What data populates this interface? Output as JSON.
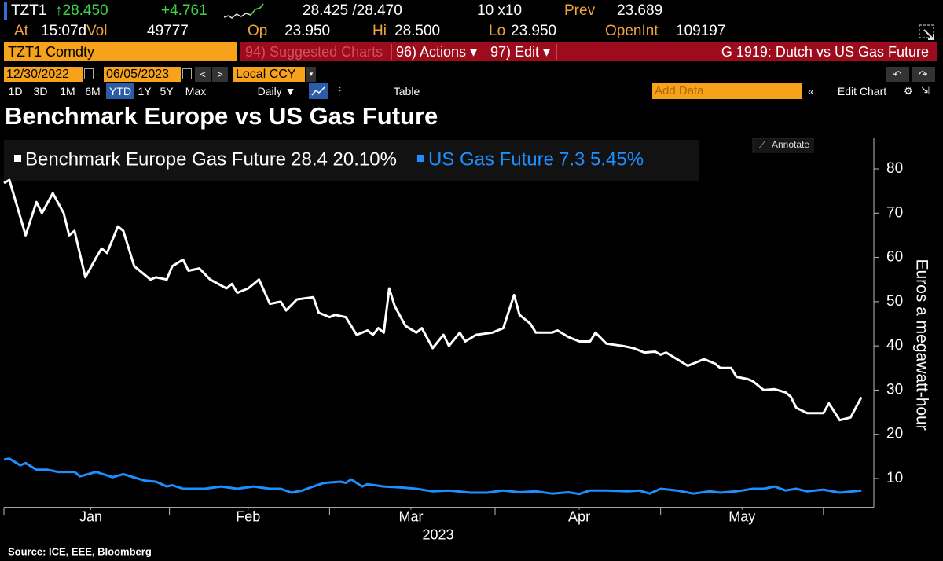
{
  "header": {
    "ticker": "TZT1",
    "last": "↑28.450",
    "change": "+4.761",
    "bid_ask": "28.425 /28.470",
    "size": "10 x10",
    "prev_label": "Prev",
    "prev": "23.689",
    "at_label": "At",
    "time": "15:07d",
    "vol_label": "Vol",
    "vol": "49777",
    "op_label": "Op",
    "op": "23.950",
    "hi_label": "Hi",
    "hi": "28.500",
    "lo_label": "Lo",
    "lo": "23.950",
    "oi_label": "OpenInt",
    "oi": "109197"
  },
  "toolbar": {
    "security": "TZT1 Comdty",
    "suggested": "94) Suggested Charts",
    "actions": "96) Actions ▾",
    "edit": "97) Edit ▾",
    "chart_name": "G 1919: Dutch vs US Gas Future",
    "start_date": "12/30/2022",
    "end_date": "06/05/2023",
    "currency": "Local CCY",
    "periods": [
      "1D",
      "3D",
      "1M",
      "6M",
      "YTD",
      "1Y",
      "5Y",
      "Max"
    ],
    "frequency": "Daily ▼",
    "table": "Table",
    "add_data": "Add Data",
    "edit_chart": "Edit Chart"
  },
  "chart_data": {
    "type": "line",
    "title": "Benchmark Europe vs US Gas Future",
    "annotate": "Annotate",
    "ylabel": "Euros a megawatt-hour",
    "xlabel": "2023",
    "source": "Source: ICE, EEE, Bloomberg",
    "xlim": [
      0,
      160
    ],
    "xticks": [
      {
        "value": 16,
        "label": "Jan"
      },
      {
        "value": 45,
        "label": "Feb"
      },
      {
        "value": 75,
        "label": "Mar"
      },
      {
        "value": 106,
        "label": "Apr"
      },
      {
        "value": 136,
        "label": "May"
      }
    ],
    "ylim": [
      3.5,
      87
    ],
    "yticks": [
      10,
      20,
      30,
      40,
      50,
      60,
      70,
      80
    ],
    "grid": false,
    "y_axis_side": "right",
    "series": [
      {
        "name": "Benchmark Europe Gas Future",
        "legend_stats": "28.4 20.10%",
        "color": "#ffffff",
        "x": [
          0,
          1,
          4,
          6,
          7,
          9,
          11,
          12,
          13,
          15,
          17,
          18,
          19,
          21,
          22,
          24,
          27,
          28,
          30,
          31,
          33,
          34,
          36,
          38,
          41,
          42,
          43,
          45,
          47,
          49,
          51,
          52,
          54,
          57,
          58,
          60,
          61,
          63,
          65,
          67,
          68,
          69,
          70,
          71,
          72,
          74,
          76,
          77,
          79,
          81,
          82,
          84,
          85,
          87,
          90,
          92,
          94,
          95,
          97,
          98,
          101,
          102,
          104,
          106,
          108,
          109,
          111,
          114,
          116,
          118,
          120,
          121,
          122,
          124,
          126,
          128,
          129,
          131,
          132,
          134,
          135,
          137,
          138,
          140,
          142,
          144,
          145,
          146,
          148,
          151,
          152,
          154,
          156,
          158
        ],
        "values": [
          76.8,
          77.5,
          65,
          72.5,
          70,
          74.5,
          70,
          65,
          66,
          55.5,
          60,
          62,
          61,
          67,
          66,
          58,
          55,
          55.5,
          55,
          58,
          59.5,
          57,
          57.5,
          55,
          53,
          54,
          52,
          53,
          55,
          49.5,
          50,
          48,
          50.5,
          51,
          47.5,
          46.5,
          47,
          46.5,
          42.5,
          43.5,
          42.5,
          44,
          43,
          53,
          49,
          44.5,
          43,
          44,
          39.5,
          42.5,
          40,
          43,
          41,
          42.5,
          43,
          44,
          51.5,
          47,
          45,
          43,
          43,
          43.5,
          42,
          41,
          41,
          43,
          40.5,
          40,
          39.5,
          38.5,
          38.7,
          38,
          38.5,
          37,
          35.5,
          36.5,
          37,
          36,
          35,
          35,
          33,
          32.5,
          32,
          30,
          30.2,
          29.5,
          28.5,
          26,
          24.8,
          24.8,
          27,
          23.2,
          23.8,
          28.4
        ]
      },
      {
        "name": "US Gas Future",
        "legend_stats": "7.3 5.45%",
        "color": "#1e8fff",
        "x": [
          0,
          1,
          3,
          4,
          6,
          8,
          10,
          13,
          14,
          17,
          20,
          22,
          26,
          28,
          30,
          31,
          33,
          37,
          40,
          43,
          46,
          49,
          51,
          53,
          55,
          57,
          59,
          62,
          63,
          64,
          66,
          67,
          70,
          73,
          76,
          79,
          82,
          86,
          89,
          92,
          95,
          98,
          101,
          104,
          106,
          108,
          111,
          115,
          117,
          119,
          121,
          124,
          127,
          130,
          132,
          135,
          138,
          140,
          142,
          144,
          146,
          148,
          151,
          154,
          158
        ],
        "values": [
          14.3,
          14.5,
          13,
          13.5,
          12,
          12,
          11.5,
          11.5,
          10.5,
          11.5,
          10.3,
          11,
          9.5,
          9.3,
          8.2,
          8.5,
          7.7,
          7.7,
          8.2,
          7.7,
          8.2,
          7.7,
          7.7,
          6.8,
          7.3,
          8.2,
          9,
          9.3,
          9,
          9.8,
          8.2,
          8.7,
          8.2,
          8,
          7.7,
          7.1,
          7.3,
          6.8,
          6.8,
          7.3,
          6.9,
          7.1,
          6.6,
          6.9,
          6.5,
          7.3,
          7.3,
          7.1,
          7.3,
          6.6,
          7.7,
          7.3,
          6.6,
          7.1,
          6.8,
          7.1,
          7.7,
          7.7,
          8.2,
          7.3,
          7.7,
          7.1,
          7.5,
          6.8,
          7.3
        ]
      }
    ]
  }
}
